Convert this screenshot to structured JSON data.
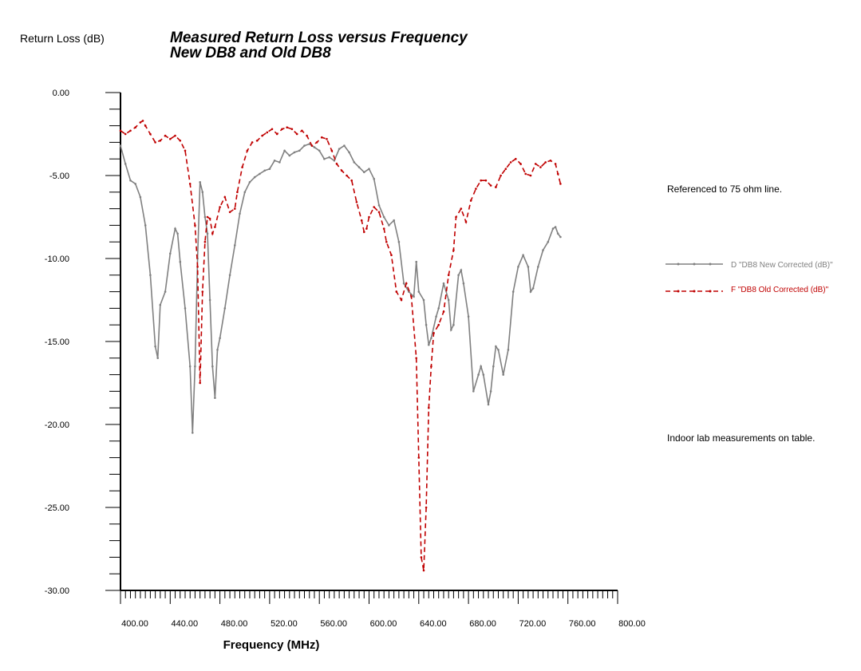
{
  "chart_data": {
    "type": "line",
    "title": "Measured Return Loss versus Frequency",
    "subtitle": "New DB8 and Old DB8",
    "ylabel": "Return Loss (dB)",
    "xlabel": "Frequency (MHz)",
    "xlim": [
      400,
      800
    ],
    "ylim": [
      -30,
      0
    ],
    "x_ticks": [
      "400.00",
      "440.00",
      "480.00",
      "520.00",
      "560.00",
      "600.00",
      "640.00",
      "680.00",
      "720.00",
      "760.00",
      "800.00"
    ],
    "y_ticks": [
      "0.00",
      "-5.00",
      "-10.00",
      "-15.00",
      "-20.00",
      "-25.00",
      "-30.00"
    ],
    "annotations": [
      "Referenced to 75 ohm line.",
      "Indoor lab measurements on table."
    ],
    "legend_position": "right",
    "series": [
      {
        "name": "D \"DB8 New Corrected (dB)\"",
        "color": "#808080",
        "style": "solid-with-markers",
        "points": [
          [
            400,
            -3.2
          ],
          [
            404,
            -4.3
          ],
          [
            408,
            -5.3
          ],
          [
            412,
            -5.5
          ],
          [
            416,
            -6.3
          ],
          [
            420,
            -8.0
          ],
          [
            424,
            -11.0
          ],
          [
            428,
            -15.3
          ],
          [
            430,
            -16.0
          ],
          [
            432,
            -12.8
          ],
          [
            436,
            -12.0
          ],
          [
            440,
            -9.7
          ],
          [
            444,
            -8.2
          ],
          [
            446,
            -8.5
          ],
          [
            448,
            -10.2
          ],
          [
            452,
            -13.0
          ],
          [
            456,
            -16.5
          ],
          [
            458,
            -20.5
          ],
          [
            460,
            -16.5
          ],
          [
            462,
            -10.0
          ],
          [
            464,
            -5.4
          ],
          [
            466,
            -6.0
          ],
          [
            468,
            -7.5
          ],
          [
            470,
            -8.5
          ],
          [
            472,
            -12.5
          ],
          [
            474,
            -16.5
          ],
          [
            476,
            -18.4
          ],
          [
            478,
            -15.5
          ],
          [
            480,
            -14.8
          ],
          [
            484,
            -13.0
          ],
          [
            488,
            -11.0
          ],
          [
            492,
            -9.2
          ],
          [
            496,
            -7.3
          ],
          [
            500,
            -6.0
          ],
          [
            504,
            -5.4
          ],
          [
            508,
            -5.1
          ],
          [
            512,
            -4.9
          ],
          [
            516,
            -4.7
          ],
          [
            520,
            -4.6
          ],
          [
            524,
            -4.1
          ],
          [
            528,
            -4.2
          ],
          [
            532,
            -3.5
          ],
          [
            536,
            -3.8
          ],
          [
            540,
            -3.6
          ],
          [
            544,
            -3.5
          ],
          [
            548,
            -3.2
          ],
          [
            552,
            -3.1
          ],
          [
            556,
            -3.3
          ],
          [
            560,
            -3.5
          ],
          [
            564,
            -4.0
          ],
          [
            568,
            -3.9
          ],
          [
            572,
            -4.1
          ],
          [
            576,
            -3.4
          ],
          [
            580,
            -3.2
          ],
          [
            584,
            -3.6
          ],
          [
            588,
            -4.2
          ],
          [
            592,
            -4.5
          ],
          [
            596,
            -4.8
          ],
          [
            600,
            -4.6
          ],
          [
            604,
            -5.2
          ],
          [
            608,
            -6.8
          ],
          [
            612,
            -7.5
          ],
          [
            616,
            -8.0
          ],
          [
            620,
            -7.7
          ],
          [
            624,
            -9.0
          ],
          [
            628,
            -11.5
          ],
          [
            632,
            -12.0
          ],
          [
            636,
            -12.3
          ],
          [
            638,
            -10.2
          ],
          [
            640,
            -12.0
          ],
          [
            644,
            -12.5
          ],
          [
            646,
            -14.0
          ],
          [
            648,
            -15.2
          ],
          [
            650,
            -14.8
          ],
          [
            654,
            -13.5
          ],
          [
            656,
            -13.0
          ],
          [
            660,
            -11.5
          ],
          [
            664,
            -12.5
          ],
          [
            666,
            -14.3
          ],
          [
            668,
            -14.0
          ],
          [
            672,
            -11.0
          ],
          [
            674,
            -10.7
          ],
          [
            676,
            -11.5
          ],
          [
            680,
            -13.5
          ],
          [
            684,
            -18.0
          ],
          [
            688,
            -17.0
          ],
          [
            690,
            -16.5
          ],
          [
            692,
            -17.0
          ],
          [
            696,
            -18.8
          ],
          [
            698,
            -18.0
          ],
          [
            700,
            -16.5
          ],
          [
            702,
            -15.3
          ],
          [
            704,
            -15.5
          ],
          [
            708,
            -17.0
          ],
          [
            712,
            -15.5
          ],
          [
            716,
            -12.0
          ],
          [
            720,
            -10.5
          ],
          [
            724,
            -9.8
          ],
          [
            728,
            -10.5
          ],
          [
            730,
            -12.0
          ],
          [
            732,
            -11.8
          ],
          [
            736,
            -10.5
          ],
          [
            740,
            -9.5
          ],
          [
            744,
            -9.0
          ],
          [
            748,
            -8.2
          ],
          [
            750,
            -8.1
          ],
          [
            752,
            -8.5
          ],
          [
            754,
            -8.7
          ]
        ]
      },
      {
        "name": "F \"DB8 Old Corrected (dB)\"",
        "color": "#c00000",
        "style": "dashed-with-markers",
        "points": [
          [
            400,
            -2.3
          ],
          [
            404,
            -2.5
          ],
          [
            408,
            -2.3
          ],
          [
            412,
            -2.1
          ],
          [
            416,
            -1.8
          ],
          [
            418,
            -1.7
          ],
          [
            420,
            -2.0
          ],
          [
            424,
            -2.5
          ],
          [
            428,
            -3.0
          ],
          [
            432,
            -2.9
          ],
          [
            436,
            -2.6
          ],
          [
            440,
            -2.8
          ],
          [
            444,
            -2.6
          ],
          [
            448,
            -2.9
          ],
          [
            452,
            -3.5
          ],
          [
            456,
            -5.5
          ],
          [
            460,
            -8.0
          ],
          [
            462,
            -10.5
          ],
          [
            464,
            -17.5
          ],
          [
            466,
            -12.0
          ],
          [
            468,
            -9.0
          ],
          [
            470,
            -7.5
          ],
          [
            472,
            -7.6
          ],
          [
            474,
            -8.5
          ],
          [
            476,
            -8.1
          ],
          [
            480,
            -6.9
          ],
          [
            484,
            -6.3
          ],
          [
            488,
            -7.2
          ],
          [
            492,
            -7.0
          ],
          [
            494,
            -6.0
          ],
          [
            498,
            -4.5
          ],
          [
            502,
            -3.5
          ],
          [
            506,
            -3.0
          ],
          [
            510,
            -2.9
          ],
          [
            514,
            -2.6
          ],
          [
            518,
            -2.4
          ],
          [
            522,
            -2.2
          ],
          [
            526,
            -2.5
          ],
          [
            530,
            -2.2
          ],
          [
            534,
            -2.1
          ],
          [
            538,
            -2.2
          ],
          [
            542,
            -2.5
          ],
          [
            546,
            -2.3
          ],
          [
            550,
            -2.6
          ],
          [
            554,
            -3.2
          ],
          [
            558,
            -3.0
          ],
          [
            562,
            -2.7
          ],
          [
            566,
            -2.8
          ],
          [
            570,
            -3.5
          ],
          [
            574,
            -4.3
          ],
          [
            578,
            -4.7
          ],
          [
            582,
            -5.0
          ],
          [
            586,
            -5.3
          ],
          [
            590,
            -6.6
          ],
          [
            594,
            -7.7
          ],
          [
            596,
            -8.4
          ],
          [
            598,
            -8.2
          ],
          [
            600,
            -7.5
          ],
          [
            604,
            -6.9
          ],
          [
            608,
            -7.2
          ],
          [
            612,
            -8.2
          ],
          [
            614,
            -9.0
          ],
          [
            618,
            -9.8
          ],
          [
            622,
            -12.0
          ],
          [
            626,
            -12.5
          ],
          [
            630,
            -11.5
          ],
          [
            634,
            -12.3
          ],
          [
            638,
            -16.0
          ],
          [
            640,
            -22.0
          ],
          [
            642,
            -28.0
          ],
          [
            644,
            -28.8
          ],
          [
            646,
            -25.0
          ],
          [
            648,
            -19.0
          ],
          [
            650,
            -16.5
          ],
          [
            652,
            -14.5
          ],
          [
            656,
            -14.0
          ],
          [
            660,
            -13.2
          ],
          [
            664,
            -11.0
          ],
          [
            668,
            -9.5
          ],
          [
            670,
            -7.5
          ],
          [
            674,
            -7.0
          ],
          [
            678,
            -7.8
          ],
          [
            682,
            -6.5
          ],
          [
            686,
            -5.8
          ],
          [
            690,
            -5.3
          ],
          [
            694,
            -5.3
          ],
          [
            698,
            -5.6
          ],
          [
            702,
            -5.7
          ],
          [
            706,
            -5.0
          ],
          [
            710,
            -4.6
          ],
          [
            714,
            -4.2
          ],
          [
            718,
            -4.0
          ],
          [
            722,
            -4.3
          ],
          [
            726,
            -4.9
          ],
          [
            730,
            -5.0
          ],
          [
            734,
            -4.3
          ],
          [
            738,
            -4.5
          ],
          [
            742,
            -4.2
          ],
          [
            746,
            -4.1
          ],
          [
            750,
            -4.3
          ],
          [
            752,
            -4.9
          ],
          [
            754,
            -5.5
          ]
        ]
      }
    ]
  }
}
